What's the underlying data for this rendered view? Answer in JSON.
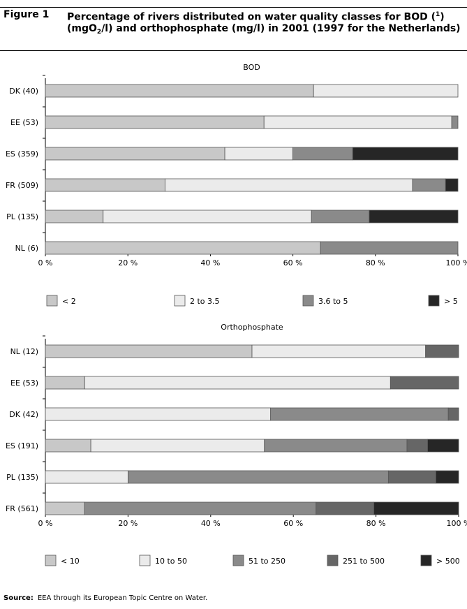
{
  "figure": {
    "label": "Figure 1",
    "title_part1": "Percentage of rivers distributed on water quality classes for BOD (",
    "title_footnote": "1",
    "title_part2": ") (mgO",
    "title_subscript": "2",
    "title_part3": "/l) and orthophosphate (mg/l) in 2001 (1997 for the Netherlands)"
  },
  "source": {
    "label": "Source:",
    "text": "EEA through its European Topic Centre on Water."
  },
  "chart_data": [
    {
      "type": "bar",
      "orientation": "horizontal",
      "stacked": true,
      "title": "BOD",
      "categories": [
        "DK (40)",
        "EE (53)",
        "ES (359)",
        "FR (509)",
        "PL (135)",
        "NL (6)"
      ],
      "series": [
        {
          "name": "< 2",
          "values": [
            65,
            53,
            43.5,
            29,
            14,
            66.7
          ]
        },
        {
          "name": "2 to 3.5",
          "values": [
            35,
            45.5,
            16.5,
            60,
            50.5,
            0
          ]
        },
        {
          "name": "3.6 to 5",
          "values": [
            0,
            1.5,
            14.5,
            8,
            14,
            33.3
          ]
        },
        {
          "name": "> 5",
          "values": [
            0,
            0,
            25.5,
            3,
            21.5,
            0
          ]
        }
      ],
      "xlim": [
        0,
        100
      ],
      "x_ticks": [
        "0 %",
        "20 %",
        "40 %",
        "60 %",
        "80 %",
        "100 %"
      ],
      "legend_position": "bottom",
      "colors": [
        "#c8c8c8",
        "#ebebeb",
        "#8a8a8a",
        "#262626"
      ]
    },
    {
      "type": "bar",
      "orientation": "horizontal",
      "stacked": true,
      "title": "Orthophosphate",
      "categories": [
        "NL (12)",
        "EE (53)",
        "DK (42)",
        "ES (191)",
        "PL (135)",
        "FR (561)"
      ],
      "series": [
        {
          "name": "< 10",
          "values": [
            50,
            9.5,
            0,
            11,
            0,
            9.5
          ]
        },
        {
          "name": "10 to 50",
          "values": [
            42,
            74,
            54.5,
            42,
            20,
            0
          ]
        },
        {
          "name": "51 to 250",
          "values": [
            0,
            0,
            43,
            34.5,
            63,
            56
          ]
        },
        {
          "name": "251 to 500",
          "values": [
            8,
            16.5,
            2.5,
            5,
            11.5,
            14
          ]
        },
        {
          "name": "> 500",
          "values": [
            0,
            0,
            0,
            7.5,
            5.5,
            20.5
          ]
        }
      ],
      "xlim": [
        0,
        100
      ],
      "x_ticks": [
        "0 %",
        "20 %",
        "40 %",
        "60 %",
        "80 %",
        "100 %"
      ],
      "legend_position": "bottom",
      "colors": [
        "#c8c8c8",
        "#ebebeb",
        "#8a8a8a",
        "#666666",
        "#262626"
      ]
    }
  ]
}
